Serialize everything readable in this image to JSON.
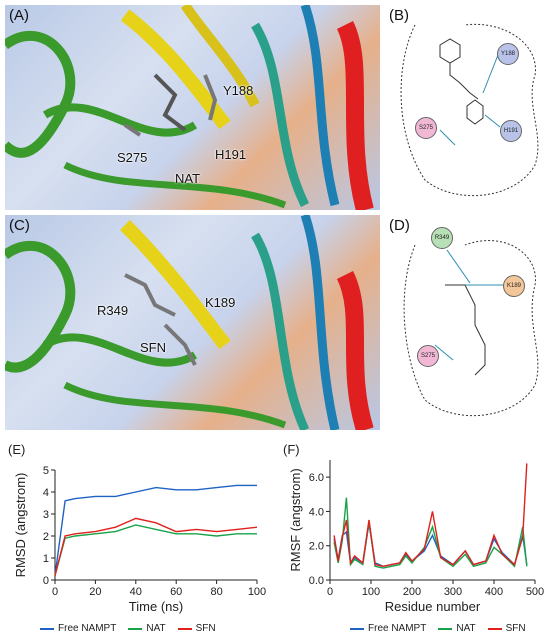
{
  "panels": {
    "A": {
      "label": "(A)",
      "residues": [
        "Y188",
        "S275",
        "H191",
        "NAT"
      ]
    },
    "B": {
      "label": "(B)",
      "nodes": [
        "Y188",
        "S275",
        "H191"
      ]
    },
    "C": {
      "label": "(C)",
      "residues": [
        "R349",
        "K189",
        "SFN"
      ]
    },
    "D": {
      "label": "(D)",
      "nodes": [
        "R349",
        "K189",
        "S275"
      ]
    },
    "E": {
      "label": "(E)"
    },
    "F": {
      "label": "(F)"
    }
  },
  "colors": {
    "free": "#1f62c4",
    "nat": "#18a34a",
    "sfn": "#e0201b",
    "helix_red": "#e02020",
    "helix_green": "#3a9a2c",
    "sheet_yellow": "#e7d21a"
  },
  "legend": [
    "Free NAMPT",
    "NAT",
    "SFN"
  ],
  "chart_data": [
    {
      "type": "line",
      "xlabel": "Time (ns)",
      "ylabel": "RMSD (angstrom)",
      "xlim": [
        0,
        100
      ],
      "ylim": [
        0,
        5
      ],
      "xticks": [
        0,
        20,
        40,
        60,
        80,
        100
      ],
      "yticks": [
        0,
        1,
        2,
        3,
        4,
        5
      ],
      "x": [
        0,
        5,
        10,
        20,
        30,
        40,
        50,
        60,
        70,
        80,
        90,
        100
      ],
      "series": [
        {
          "name": "Free NAMPT",
          "values": [
            0.2,
            3.6,
            3.7,
            3.8,
            3.8,
            4.0,
            4.2,
            4.1,
            4.1,
            4.2,
            4.3,
            4.3
          ]
        },
        {
          "name": "NAT",
          "values": [
            0.2,
            1.9,
            2.0,
            2.1,
            2.2,
            2.5,
            2.3,
            2.1,
            2.1,
            2.0,
            2.1,
            2.1
          ]
        },
        {
          "name": "SFN",
          "values": [
            0.2,
            2.0,
            2.1,
            2.2,
            2.4,
            2.8,
            2.6,
            2.2,
            2.3,
            2.2,
            2.3,
            2.4
          ]
        }
      ]
    },
    {
      "type": "line",
      "xlabel": "Residue number",
      "ylabel": "RMSF (angstrom)",
      "xlim": [
        0,
        500
      ],
      "ylim": [
        0,
        7
      ],
      "xticks": [
        0,
        100,
        200,
        300,
        400,
        500
      ],
      "yticks": [
        0.0,
        2.0,
        4.0,
        6.0
      ],
      "x": [
        10,
        20,
        30,
        40,
        50,
        60,
        80,
        95,
        110,
        130,
        150,
        170,
        185,
        200,
        230,
        250,
        270,
        300,
        330,
        350,
        380,
        400,
        420,
        450,
        470,
        480
      ],
      "series": [
        {
          "name": "Free NAMPT",
          "values": [
            2.4,
            1.2,
            2.6,
            2.8,
            1.0,
            1.3,
            1.0,
            3.3,
            1.0,
            0.8,
            0.9,
            1.0,
            1.5,
            1.1,
            1.7,
            2.6,
            1.4,
            0.9,
            1.7,
            0.9,
            1.1,
            2.4,
            1.6,
            0.9,
            2.6,
            0.9
          ]
        },
        {
          "name": "NAT",
          "values": [
            2.2,
            1.0,
            2.3,
            4.8,
            0.9,
            1.2,
            0.9,
            3.4,
            0.8,
            0.7,
            0.8,
            0.9,
            1.4,
            1.0,
            1.9,
            3.1,
            1.3,
            0.8,
            1.5,
            0.8,
            1.0,
            1.9,
            1.5,
            0.8,
            3.1,
            0.8
          ]
        },
        {
          "name": "SFN",
          "values": [
            2.6,
            1.1,
            2.5,
            3.5,
            1.0,
            1.4,
            1.0,
            3.5,
            0.9,
            0.8,
            0.9,
            1.0,
            1.6,
            1.1,
            1.8,
            4.0,
            1.3,
            0.9,
            1.7,
            0.9,
            1.1,
            2.6,
            1.5,
            0.9,
            2.5,
            6.8
          ]
        }
      ]
    }
  ]
}
